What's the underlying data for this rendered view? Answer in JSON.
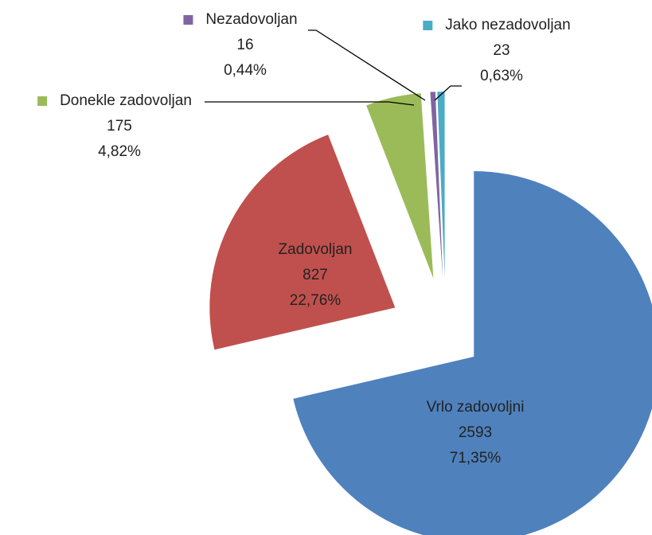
{
  "chart_data": {
    "type": "pie",
    "categories": [
      "Vrlo zadovoljni",
      "Zadovoljan",
      "Donekle zadovoljan",
      "Nezadovoljan",
      "Jako nezadovoljan"
    ],
    "values": [
      2593,
      827,
      175,
      16,
      23
    ],
    "percentages": [
      71.35,
      22.76,
      4.82,
      0.44,
      0.63
    ],
    "percentage_labels": [
      "71,35%",
      "22,76%",
      "4,82%",
      "0,44%",
      "0,63%"
    ],
    "colors": [
      "#4f81bd",
      "#c0504d",
      "#9bbb59",
      "#8064a2",
      "#4bacc6"
    ]
  }
}
